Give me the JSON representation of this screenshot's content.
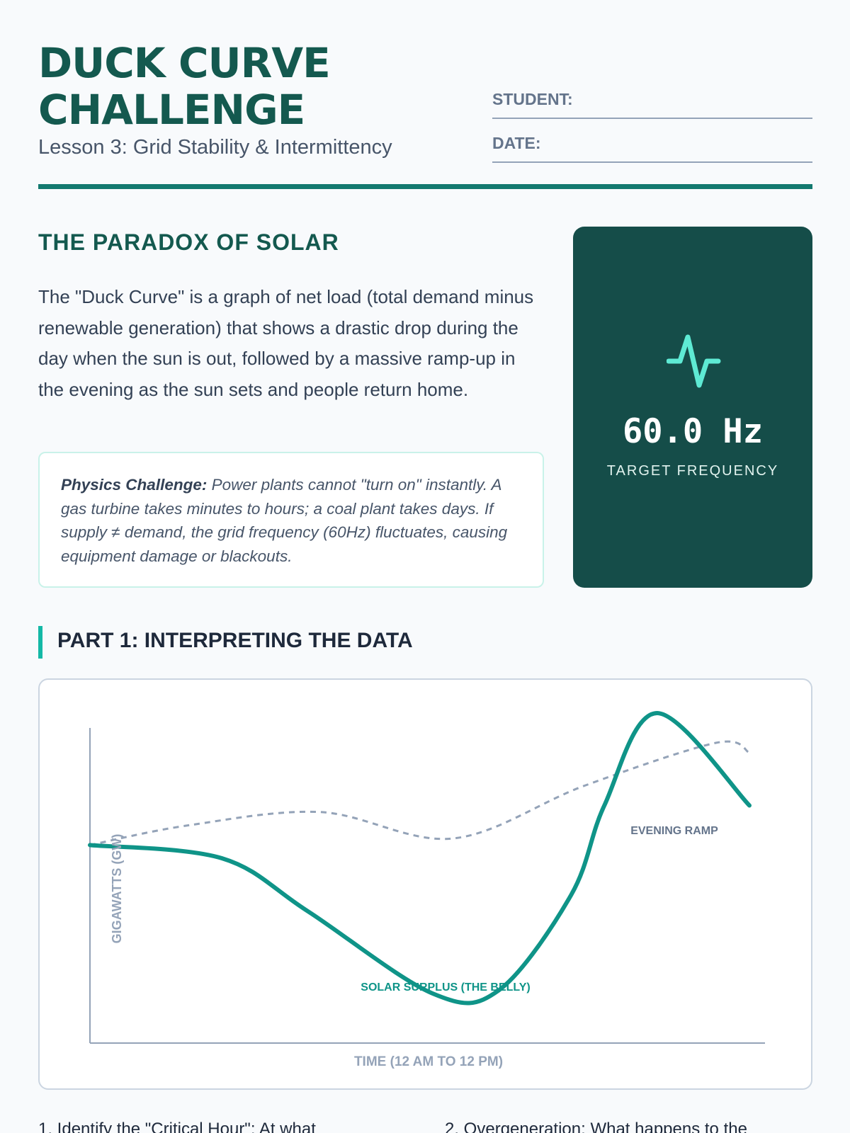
{
  "header": {
    "title_line1": "DUCK CURVE",
    "title_line2": "CHALLENGE",
    "subtitle": "Lesson 3: Grid Stability & Intermittency",
    "student_label": "STUDENT:",
    "date_label": "DATE:"
  },
  "intro": {
    "title": "THE PARADOX OF SOLAR",
    "text": "The \"Duck Curve\" is a graph of net load (total demand minus renewable generation) that shows a drastic drop during the day when the sun is out, followed by a massive ramp-up in the evening as the sun sets and people return home.",
    "callout_label": "Physics Challenge:",
    "callout_text": " Power plants cannot \"turn on\" instantly. A gas turbine takes minutes to hours; a coal plant takes days. If supply ≠ demand, the grid frequency (60Hz) fluctuates, causing equipment damage or blackouts."
  },
  "frequency_card": {
    "icon": "pulse-icon",
    "value": "60.0 Hz",
    "label": "TARGET FREQUENCY",
    "bg_color": "#154d49",
    "icon_color": "#5eead4"
  },
  "part1": {
    "title": "PART 1: INTERPRETING THE DATA"
  },
  "chart": {
    "ylabel": "GIGAWATTS (GW)",
    "xlabel": "TIME (12 AM TO 12 PM)",
    "annotation_belly": "SOLAR SURPLUS (THE BELLY)",
    "annotation_ramp": "EVENING RAMP",
    "net_load_color": "#0f9488",
    "demand_color": "#94a3b8"
  },
  "chart_data": {
    "type": "line",
    "title": "",
    "xlabel": "TIME (12 AM TO 12 PM)",
    "ylabel": "GIGAWATTS (GW)",
    "grid": false,
    "series": [
      {
        "style": "solid",
        "x": [
          0,
          0.2,
          0.33,
          0.52,
          0.62,
          0.73,
          0.78,
          0.86,
          1.0
        ],
        "y": [
          0.6,
          0.56,
          0.4,
          0.15,
          0.16,
          0.45,
          0.72,
          1.0,
          0.72
        ]
      },
      {
        "style": "dashed",
        "x": [
          0,
          0.15,
          0.35,
          0.55,
          0.75,
          0.95,
          1.0
        ],
        "y": [
          0.6,
          0.66,
          0.7,
          0.62,
          0.78,
          0.91,
          0.88
        ]
      }
    ],
    "annotations": [
      "SOLAR SURPLUS (THE BELLY)",
      "EVENING RAMP"
    ]
  },
  "questions": {
    "q1": "1. Identify the \"Critical Hour\": At what",
    "q2": "2. Overgeneration: What happens to the"
  }
}
